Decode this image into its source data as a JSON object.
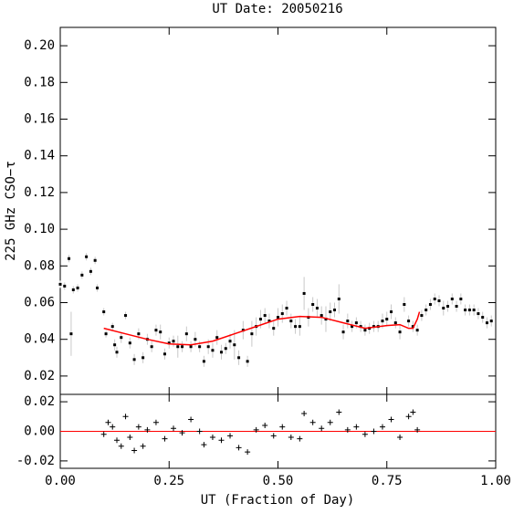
{
  "chart_data": [
    {
      "type": "scatter",
      "title": "UT Date: 20050216",
      "y_label": "225 GHz CSO−τ",
      "xlim": [
        0,
        1
      ],
      "xticks": [
        0,
        0.25,
        0.5,
        0.75,
        1
      ],
      "xtick_labels": false,
      "ylim": [
        0.01,
        0.21
      ],
      "yticks": [
        0.02,
        0.04,
        0.06,
        0.08,
        {
          "value": 0.1,
          "label": "0.10"
        },
        0.12,
        0.14,
        0.16,
        0.18,
        {
          "value": 0.2,
          "label": "0.20"
        }
      ],
      "series": [
        {
          "type": "errorbar",
          "color": "#000000",
          "error_color": "#c8c8c8",
          "x": [
            0,
            0.01,
            0.02,
            0.025,
            0.03,
            0.04,
            0.05,
            0.06,
            0.07,
            0.08,
            0.085,
            0.1,
            0.105,
            0.12,
            0.125,
            0.13,
            0.14,
            0.15,
            0.16,
            0.17,
            0.18,
            0.19,
            0.2,
            0.21,
            0.22,
            0.23,
            0.24,
            0.25,
            0.26,
            0.27,
            0.28,
            0.29,
            0.3,
            0.31,
            0.32,
            0.33,
            0.34,
            0.35,
            0.36,
            0.37,
            0.38,
            0.39,
            0.4,
            0.41,
            0.42,
            0.43,
            0.44,
            0.45,
            0.46,
            0.47,
            0.48,
            0.49,
            0.5,
            0.51,
            0.52,
            0.53,
            0.54,
            0.55,
            0.56,
            0.57,
            0.58,
            0.59,
            0.6,
            0.61,
            0.62,
            0.63,
            0.64,
            0.65,
            0.66,
            0.67,
            0.68,
            0.69,
            0.7,
            0.71,
            0.72,
            0.73,
            0.74,
            0.75,
            0.76,
            0.77,
            0.78,
            0.79,
            0.8,
            0.81,
            0.82,
            0.83,
            0.84,
            0.85,
            0.86,
            0.87,
            0.88,
            0.89,
            0.9,
            0.91,
            0.92,
            0.93,
            0.94,
            0.95,
            0.96,
            0.97,
            0.98,
            0.99
          ],
          "values": [
            0.07,
            0.069,
            0.084,
            0.043,
            0.067,
            0.068,
            0.075,
            0.085,
            0.077,
            0.083,
            0.068,
            0.055,
            0.043,
            0.047,
            0.037,
            0.033,
            0.041,
            0.053,
            0.038,
            0.029,
            0.043,
            0.03,
            0.04,
            0.036,
            0.045,
            0.044,
            0.032,
            0.038,
            0.039,
            0.036,
            0.036,
            0.043,
            0.036,
            0.04,
            0.036,
            0.028,
            0.036,
            0.034,
            0.041,
            0.033,
            0.035,
            0.039,
            0.037,
            0.03,
            0.045,
            0.028,
            0.043,
            0.047,
            0.051,
            0.053,
            0.05,
            0.046,
            0.052,
            0.054,
            0.057,
            0.05,
            0.047,
            0.047,
            0.065,
            0.052,
            0.059,
            0.057,
            0.053,
            0.051,
            0.055,
            0.056,
            0.062,
            0.044,
            0.05,
            0.047,
            0.049,
            0.047,
            0.045,
            0.046,
            0.047,
            0.047,
            0.05,
            0.051,
            0.055,
            0.049,
            0.044,
            0.059,
            0.05,
            0.047,
            0.045,
            0.053,
            0.056,
            0.059,
            0.062,
            0.061,
            0.057,
            0.058,
            0.062,
            0.058,
            0.062,
            0.056,
            0.056,
            0.056,
            0.054,
            0.052,
            0.049,
            0.05
          ],
          "errors": [
            0.002,
            0.002,
            0.002,
            0.012,
            0.002,
            0.002,
            0.002,
            0.002,
            0.002,
            0.002,
            0.002,
            0.002,
            0.002,
            0.002,
            0.003,
            0.003,
            0.003,
            0.002,
            0.003,
            0.003,
            0.003,
            0.003,
            0.003,
            0.003,
            0.003,
            0.004,
            0.003,
            0.003,
            0.003,
            0.006,
            0.003,
            0.004,
            0.003,
            0.004,
            0.003,
            0.003,
            0.004,
            0.004,
            0.004,
            0.004,
            0.003,
            0.004,
            0.008,
            0.004,
            0.005,
            0.003,
            0.007,
            0.005,
            0.005,
            0.004,
            0.004,
            0.004,
            0.005,
            0.005,
            0.004,
            0.004,
            0.004,
            0.005,
            0.009,
            0.005,
            0.004,
            0.005,
            0.005,
            0.007,
            0.005,
            0.004,
            0.008,
            0.004,
            0.004,
            0.003,
            0.003,
            0.003,
            0.003,
            0.003,
            0.003,
            0.003,
            0.004,
            0.004,
            0.004,
            0.003,
            0.004,
            0.004,
            0.003,
            0.003,
            0.003,
            0.003,
            0.003,
            0.003,
            0.003,
            0.003,
            0.004,
            0.003,
            0.003,
            0.003,
            0.003,
            0.003,
            0.003,
            0.003,
            0.003,
            0.003,
            0.003,
            0.003
          ]
        },
        {
          "type": "line",
          "color": "#ff0000",
          "x": [
            0.1,
            0.15,
            0.2,
            0.25,
            0.3,
            0.35,
            0.4,
            0.45,
            0.5,
            0.55,
            0.6,
            0.65,
            0.7,
            0.75,
            0.78,
            0.8,
            0.81,
            0.82,
            0.825
          ],
          "values": [
            0.046,
            0.043,
            0.04,
            0.0375,
            0.037,
            0.039,
            0.043,
            0.047,
            0.051,
            0.0525,
            0.052,
            0.049,
            0.046,
            0.0475,
            0.048,
            0.046,
            0.046,
            0.051,
            0.055
          ]
        }
      ]
    },
    {
      "type": "scatter",
      "x_label": "UT (Fraction of Day)",
      "xlim": [
        0,
        1
      ],
      "xticks": [
        {
          "value": 0,
          "label": "0.00"
        },
        {
          "value": 0.25,
          "label": "0.25"
        },
        {
          "value": 0.5,
          "label": "0.50"
        },
        {
          "value": 0.75,
          "label": "0.75"
        },
        {
          "value": 1,
          "label": "1.00"
        }
      ],
      "xtick_labels": true,
      "ylim": [
        -0.025,
        0.025
      ],
      "yticks": [
        -0.02,
        {
          "value": 0,
          "label": "0.00"
        },
        0.02
      ],
      "hline": 0,
      "hline_color": "#ff0000",
      "series": [
        {
          "type": "plus",
          "color": "#000000",
          "x": [
            0.1,
            0.11,
            0.12,
            0.13,
            0.14,
            0.15,
            0.16,
            0.17,
            0.18,
            0.19,
            0.2,
            0.22,
            0.24,
            0.26,
            0.28,
            0.3,
            0.32,
            0.33,
            0.35,
            0.37,
            0.39,
            0.41,
            0.43,
            0.45,
            0.47,
            0.49,
            0.51,
            0.53,
            0.55,
            0.56,
            0.58,
            0.6,
            0.62,
            0.64,
            0.66,
            0.68,
            0.7,
            0.72,
            0.74,
            0.76,
            0.78,
            0.8,
            0.81,
            0.82
          ],
          "values": [
            -0.002,
            0.006,
            0.003,
            -0.006,
            -0.01,
            0.01,
            -0.004,
            -0.013,
            0.003,
            -0.01,
            0.001,
            0.006,
            -0.005,
            0.002,
            -0.001,
            0.008,
            0,
            -0.009,
            -0.004,
            -0.006,
            -0.003,
            -0.011,
            -0.014,
            0.001,
            0.004,
            -0.003,
            0.003,
            -0.004,
            -0.005,
            0.012,
            0.006,
            0.002,
            0.006,
            0.013,
            0.001,
            0.003,
            -0.002,
            0,
            0.003,
            0.008,
            -0.004,
            0.01,
            0.013,
            0.001
          ]
        }
      ]
    }
  ]
}
